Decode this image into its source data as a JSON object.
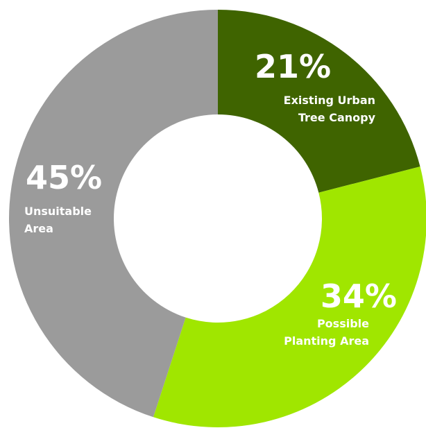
{
  "chart_data": {
    "type": "pie",
    "donut": true,
    "slices": [
      {
        "value": 21,
        "percent_label": "21%",
        "label_lines": [
          "Existing Urban",
          "Tree Canopy"
        ],
        "color": "#3f6400"
      },
      {
        "value": 34,
        "percent_label": "34%",
        "label_lines": [
          "Possible",
          "Planting Area"
        ],
        "color": "#a0e600"
      },
      {
        "value": 45,
        "percent_label": "45%",
        "label_lines": [
          "Unsuitable",
          "Area"
        ],
        "color": "#9b9b9b"
      }
    ]
  }
}
